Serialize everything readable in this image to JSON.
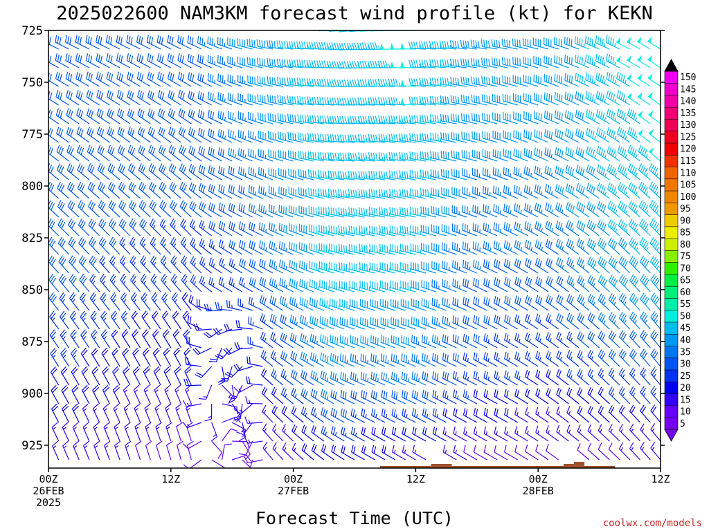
{
  "chart_data": {
    "type": "wind-barb-profile",
    "title": "2025022600 NAM3KM forecast wind profile (kt) for KEKN",
    "xlabel": "Forecast Time (UTC)",
    "ylabel": "",
    "x_ticks": [
      {
        "hour": 0,
        "lines": [
          "00Z",
          "26FEB",
          "2025"
        ]
      },
      {
        "hour": 12,
        "lines": [
          "12Z"
        ]
      },
      {
        "hour": 24,
        "lines": [
          "00Z",
          "27FEB"
        ]
      },
      {
        "hour": 36,
        "lines": [
          "12Z"
        ]
      },
      {
        "hour": 48,
        "lines": [
          "00Z",
          "28FEB"
        ]
      },
      {
        "hour": 60,
        "lines": [
          "12Z"
        ]
      }
    ],
    "y_ticks": [
      725,
      750,
      775,
      800,
      825,
      850,
      875,
      900,
      925
    ],
    "xlim": [
      0,
      60
    ],
    "ylim": [
      725,
      936
    ],
    "pressure_step": 9,
    "time_step_hours": 1,
    "colorbar": {
      "levels": [
        5,
        10,
        15,
        20,
        25,
        30,
        35,
        40,
        45,
        50,
        55,
        60,
        65,
        70,
        75,
        80,
        85,
        90,
        95,
        100,
        105,
        110,
        115,
        120,
        125,
        130,
        135,
        140,
        145,
        150
      ],
      "colors": [
        "#7700ee",
        "#6600ff",
        "#3300ff",
        "#0000ee",
        "#0033ee",
        "#0055ee",
        "#0077ee",
        "#0099ee",
        "#00bbee",
        "#00eedd",
        "#00eeaa",
        "#00ee77",
        "#00ee44",
        "#33ee00",
        "#88ee00",
        "#ccee00",
        "#eeee00",
        "#eecc00",
        "#ee9900",
        "#ee8800",
        "#ee7700",
        "#ee6600",
        "#ee3300",
        "#ee0000",
        "#ee0022",
        "#ee0055",
        "#ee0077",
        "#ee00aa",
        "#ee00cc",
        "#ee00ee"
      ]
    },
    "surface_pressure": [
      {
        "hour": 0,
        "hPa": 937
      },
      {
        "hour": 1,
        "hPa": 936
      },
      {
        "hour": 2,
        "hPa": 937
      },
      {
        "hour": 3,
        "hPa": 937
      },
      {
        "hour": 4,
        "hPa": 938
      },
      {
        "hour": 5,
        "hPa": 937
      },
      {
        "hour": 6,
        "hPa": 937
      },
      {
        "hour": 7,
        "hPa": 937
      },
      {
        "hour": 8,
        "hPa": 937
      },
      {
        "hour": 9,
        "hPa": 937
      },
      {
        "hour": 10,
        "hPa": 938
      },
      {
        "hour": 11,
        "hPa": 939
      },
      {
        "hour": 12,
        "hPa": 939
      },
      {
        "hour": 13,
        "hPa": 940
      },
      {
        "hour": 14,
        "hPa": 941
      },
      {
        "hour": 15,
        "hPa": 941
      },
      {
        "hour": 16,
        "hPa": 941
      },
      {
        "hour": 17,
        "hPa": 940
      },
      {
        "hour": 18,
        "hPa": 940
      },
      {
        "hour": 19,
        "hPa": 938
      },
      {
        "hour": 20,
        "hPa": 938
      },
      {
        "hour": 21,
        "hPa": 938
      },
      {
        "hour": 22,
        "hPa": 938
      },
      {
        "hour": 23,
        "hPa": 938
      },
      {
        "hour": 24,
        "hPa": 938
      },
      {
        "hour": 25,
        "hPa": 938
      },
      {
        "hour": 26,
        "hPa": 938
      },
      {
        "hour": 27,
        "hPa": 937
      },
      {
        "hour": 28,
        "hPa": 937
      },
      {
        "hour": 29,
        "hPa": 936
      },
      {
        "hour": 30,
        "hPa": 936
      },
      {
        "hour": 31,
        "hPa": 936
      },
      {
        "hour": 32,
        "hPa": 936
      },
      {
        "hour": 33,
        "hPa": 935
      },
      {
        "hour": 34,
        "hPa": 935
      },
      {
        "hour": 35,
        "hPa": 935
      },
      {
        "hour": 36,
        "hPa": 935
      },
      {
        "hour": 37,
        "hPa": 935
      },
      {
        "hour": 38,
        "hPa": 934
      },
      {
        "hour": 39,
        "hPa": 934
      },
      {
        "hour": 40,
        "hPa": 935
      },
      {
        "hour": 41,
        "hPa": 935
      },
      {
        "hour": 42,
        "hPa": 935
      },
      {
        "hour": 43,
        "hPa": 935
      },
      {
        "hour": 44,
        "hPa": 935
      },
      {
        "hour": 45,
        "hPa": 935
      },
      {
        "hour": 46,
        "hPa": 935
      },
      {
        "hour": 47,
        "hPa": 935
      },
      {
        "hour": 48,
        "hPa": 935
      },
      {
        "hour": 49,
        "hPa": 935
      },
      {
        "hour": 50,
        "hPa": 935
      },
      {
        "hour": 51,
        "hPa": 934
      },
      {
        "hour": 52,
        "hPa": 933
      },
      {
        "hour": 53,
        "hPa": 935
      },
      {
        "hour": 54,
        "hPa": 935
      },
      {
        "hour": 55,
        "hPa": 935
      },
      {
        "hour": 56,
        "hPa": 936
      },
      {
        "hour": 57,
        "hPa": 936
      },
      {
        "hour": 58,
        "hPa": 937
      },
      {
        "hour": 59,
        "hPa": 937
      },
      {
        "hour": 60,
        "hPa": 937
      }
    ],
    "wind_speed_kt_keyframes": [
      {
        "hour": 0,
        "speeds": {
          "725": 30,
          "800": 30,
          "850": 30,
          "900": 22,
          "930": 15
        }
      },
      {
        "hour": 10,
        "speeds": {
          "725": 30,
          "800": 30,
          "850": 25,
          "900": 17,
          "930": 12
        }
      },
      {
        "hour": 16,
        "speeds": {
          "725": 33,
          "800": 30,
          "850": 23,
          "900": 17,
          "930": 10
        }
      },
      {
        "hour": 20,
        "speeds": {
          "725": 40,
          "800": 33,
          "850": 27,
          "900": 15,
          "930": 10
        }
      },
      {
        "hour": 28,
        "speeds": {
          "725": 47,
          "800": 45,
          "850": 45,
          "900": 35,
          "930": 20
        }
      },
      {
        "hour": 36,
        "speeds": {
          "725": 48,
          "800": 47,
          "850": 43,
          "900": 35,
          "930": 17
        }
      },
      {
        "hour": 42,
        "speeds": {
          "725": 42,
          "800": 37,
          "850": 32,
          "900": 25,
          "930": 12
        }
      },
      {
        "hour": 50,
        "speeds": {
          "725": 40,
          "800": 37,
          "850": 30,
          "900": 20,
          "930": 12
        }
      },
      {
        "hour": 56,
        "speeds": {
          "725": 47,
          "800": 45,
          "850": 40,
          "900": 25,
          "930": 12
        }
      },
      {
        "hour": 60,
        "speeds": {
          "725": 52,
          "800": 47,
          "850": 42,
          "900": 25,
          "930": 15
        }
      }
    ],
    "wind_direction_deg_keyframes": [
      {
        "hour": 0,
        "dirs": {
          "725": 295,
          "850": 320,
          "930": 335
        }
      },
      {
        "hour": 14,
        "dirs": {
          "725": 295,
          "850": 320,
          "930": 345
        }
      },
      {
        "hour": 17,
        "dirs": {
          "725": 290,
          "850": 305,
          "930": 10
        }
      },
      {
        "hour": 22,
        "dirs": {
          "725": 278,
          "850": 300,
          "930": 320
        }
      },
      {
        "hour": 30,
        "dirs": {
          "725": 265,
          "850": 285,
          "930": 300
        }
      },
      {
        "hour": 36,
        "dirs": {
          "725": 270,
          "850": 285,
          "930": 300
        }
      },
      {
        "hour": 46,
        "dirs": {
          "725": 280,
          "850": 300,
          "930": 300
        }
      },
      {
        "hour": 60,
        "dirs": {
          "725": 300,
          "850": 320,
          "930": 320
        }
      }
    ]
  },
  "footer": {
    "watermark": "coolwx.com/models"
  }
}
